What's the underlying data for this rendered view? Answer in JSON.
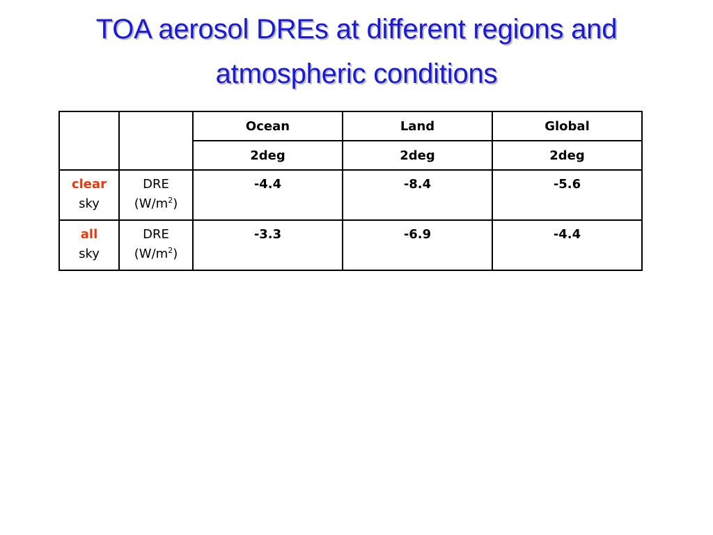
{
  "title": {
    "line1": "TOA aerosol DREs at different regions and",
    "line2": "atmospheric conditions"
  },
  "table": {
    "regions": [
      "Ocean",
      "Land",
      "Global"
    ],
    "resolutions": [
      "2deg",
      "2deg",
      "2deg"
    ],
    "rows": [
      {
        "condition_key": "clear",
        "condition_suffix": "sky",
        "quantity": "DRE",
        "unit_base": "(W/m",
        "unit_exp": "2",
        "unit_close": ")",
        "values": [
          "-4.4",
          "-8.4",
          "-5.6"
        ]
      },
      {
        "condition_key": "all",
        "condition_suffix": "sky",
        "quantity": "DRE",
        "unit_base": "(W/m",
        "unit_exp": "2",
        "unit_close": ")",
        "values": [
          "-3.3",
          "-6.9",
          "-4.4"
        ]
      }
    ]
  },
  "colors": {
    "title": "#1a1ad6",
    "condition_highlight": "#e8380d"
  }
}
